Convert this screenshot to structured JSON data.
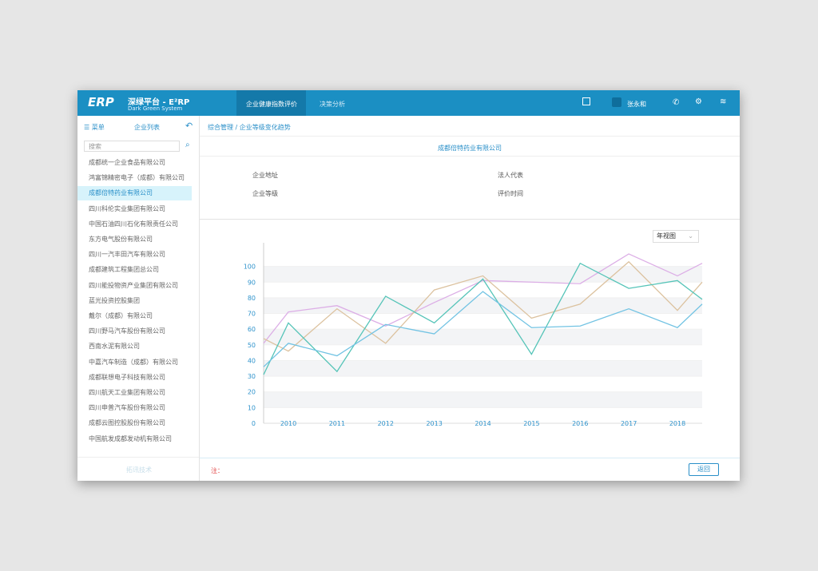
{
  "header": {
    "logo": "ERP",
    "title": "深绿平台 - E²RP",
    "subtitle": "Dark Green System",
    "nav": [
      "企业健康指数评价",
      "决策分析"
    ],
    "user": "张永和"
  },
  "sidebar": {
    "menu": "菜单",
    "tab": "企业列表",
    "search": "搜索",
    "selected": 2,
    "companies": [
      "成都统一企业食品有限公司",
      "鸿富锦精密电子（成都）有限公司",
      "成都倍特药业有限公司",
      "四川科伦实业集团有限公司",
      "中国石油四川石化有限责任公司",
      "东方电气股份有限公司",
      "四川一汽丰田汽车有限公司",
      "成都建筑工程集团总公司",
      "四川能投物资产业集团有限公司",
      "蓝光投资控股集团",
      "戴尔（成都）有限公司",
      "四川野马汽车股份有限公司",
      "西南水泥有限公司",
      "中嘉汽车制造（成都）有限公司",
      "成都联想电子科技有限公司",
      "四川航天工业集团有限公司",
      "四川申普汽车股份有限公司",
      "成都云图控股股份有限公司",
      "中国航发成都发动机有限公司"
    ],
    "footer": "拓讯技术"
  },
  "breadcrumb": [
    "综合管理",
    "企业等级变化趋势"
  ],
  "company": {
    "name": "成都倍特药业有限公司",
    "fields": [
      "企业地址",
      "法人代表",
      "企业等级",
      "评价时间"
    ]
  },
  "view_select": "年视图",
  "chart_data": {
    "type": "line",
    "categories": [
      null,
      "2010",
      "2011",
      "2012",
      "2013",
      "2014",
      "2015",
      "2016",
      "2017",
      "2018",
      null
    ],
    "series": [
      {
        "color": "#dcaee6",
        "values": [
          51,
          71,
          75,
          62,
          77,
          91,
          90,
          89,
          108,
          94,
          102
        ]
      },
      {
        "color": "#dcc29f",
        "values": [
          54,
          46,
          73,
          51,
          85,
          94,
          67,
          76,
          103,
          72,
          90
        ]
      },
      {
        "color": "#55c4b8",
        "values": [
          31,
          64,
          33,
          81,
          64,
          92,
          44,
          102,
          86,
          91,
          79
        ]
      },
      {
        "color": "#72c3e3",
        "values": [
          36,
          51,
          43,
          63,
          57,
          84,
          61,
          62,
          73,
          61,
          76
        ]
      }
    ],
    "ylim": [
      0,
      110
    ],
    "yticks": [
      0,
      10,
      20,
      30,
      40,
      50,
      60,
      70,
      80,
      90,
      100
    ],
    "grid": true
  },
  "footer": {
    "note": "注：",
    "button": "返回"
  }
}
